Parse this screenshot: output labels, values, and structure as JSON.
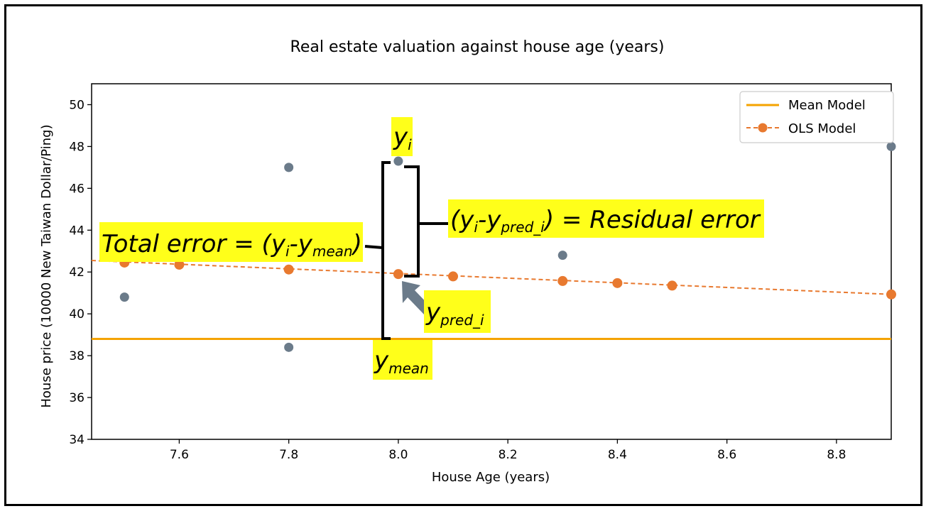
{
  "chart_data": {
    "type": "scatter",
    "title": "Real estate valuation against house age (years)",
    "xlabel": "House Age (years)",
    "ylabel": "House price (10000 New Taiwan Dollar/Ping)",
    "xlim": [
      7.44,
      8.9
    ],
    "ylim": [
      34,
      51
    ],
    "xticks": [
      "7.6",
      "7.8",
      "8.0",
      "8.2",
      "8.4",
      "8.6",
      "8.8"
    ],
    "xtick_values": [
      7.6,
      7.8,
      8.0,
      8.2,
      8.4,
      8.6,
      8.8
    ],
    "yticks": [
      "34",
      "36",
      "38",
      "40",
      "42",
      "44",
      "46",
      "48",
      "50"
    ],
    "ytick_values": [
      34,
      36,
      38,
      40,
      42,
      44,
      46,
      48,
      50
    ],
    "grid": false,
    "legend_position": "top-right",
    "series": [
      {
        "name": "Mean Model",
        "kind": "hline",
        "color": "#f4a300",
        "y": 38.8
      },
      {
        "name": "OLS Model",
        "kind": "line-markers",
        "color": "#e8792f",
        "line": {
          "x": [
            7.44,
            8.9
          ],
          "y": [
            42.55,
            40.93
          ]
        },
        "points": [
          {
            "x": 7.5,
            "y": 42.45
          },
          {
            "x": 7.6,
            "y": 42.35
          },
          {
            "x": 7.8,
            "y": 42.12
          },
          {
            "x": 8.0,
            "y": 41.9
          },
          {
            "x": 8.1,
            "y": 41.79
          },
          {
            "x": 8.3,
            "y": 41.57
          },
          {
            "x": 8.4,
            "y": 41.47
          },
          {
            "x": 8.5,
            "y": 41.35
          },
          {
            "x": 8.9,
            "y": 40.93
          }
        ]
      },
      {
        "kind": "scatter",
        "color": "#6b7b8a",
        "points": [
          {
            "x": 7.5,
            "y": 40.8
          },
          {
            "x": 7.8,
            "y": 47.0
          },
          {
            "x": 7.8,
            "y": 38.4
          },
          {
            "x": 8.0,
            "y": 47.3
          },
          {
            "x": 8.3,
            "y": 42.8
          },
          {
            "x": 8.9,
            "y": 48.0
          }
        ]
      }
    ],
    "annotations": {
      "highlight_color": "#ffff1a",
      "arrow_color": "#6b7b8a",
      "total_error": {
        "prefix": "Total error = (y",
        "sub_i": "i",
        "dash": "-y",
        "sub_mean": "mean",
        "suffix": ")"
      },
      "residual_error": {
        "prefix": "(y",
        "sub_i": "i",
        "dash": "-y",
        "sub_pred": "pred_i",
        "suffix": ") = Residual error"
      },
      "y_i": {
        "base": "y",
        "sub": "i"
      },
      "y_pred": {
        "base": "y",
        "sub": "pred_i"
      },
      "y_mean": {
        "base": "y",
        "sub": "mean"
      }
    }
  }
}
